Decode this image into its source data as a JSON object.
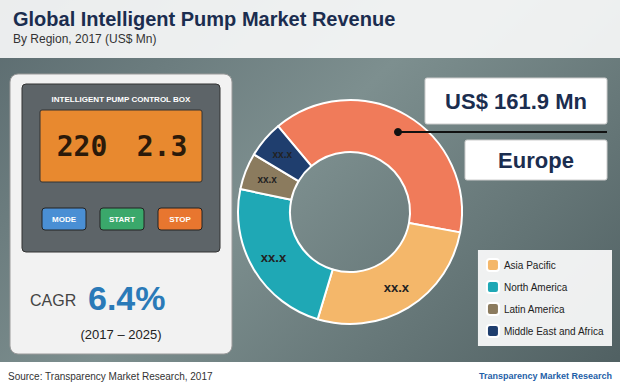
{
  "chart_data": {
    "type": "pie",
    "title": "Global Intelligent Pump Market Revenue",
    "subtitle": "By Region, 2017 (US$ Mn)",
    "categories": [
      "Europe",
      "Asia Pacific",
      "North America",
      "Latin America",
      "Middle East and Africa"
    ],
    "values": [
      161.9,
      111,
      98,
      22,
      22
    ],
    "value_labels": [
      "US$ 161.9 Mn",
      "xx.x",
      "xx.x",
      "xx.x",
      "xx.x"
    ],
    "colors": [
      "#f07b5a",
      "#f4b76a",
      "#1fa8b5",
      "#8b7b5e",
      "#1f3e6e"
    ],
    "data_labels": true,
    "legend": "bottom-right",
    "annotations": {
      "panel_title": "INTELLIGENT PUMP CONTROL BOX",
      "display": [
        "220",
        "2.3"
      ],
      "buttons": [
        "MODE",
        "START",
        "STOP"
      ],
      "cagr_label": "CAGR",
      "cagr_value": "6.4%",
      "cagr_period": "(2017 – 2025)",
      "source": "Source: Transparency Market Research, 2017",
      "logo": "Transparency Market Research"
    }
  }
}
